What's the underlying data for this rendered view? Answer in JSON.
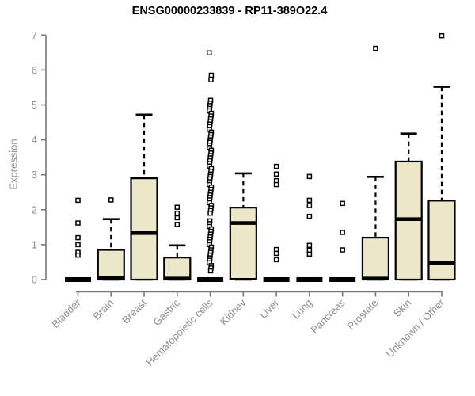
{
  "title": "ENSG00000233839 - RP11-389O22.4",
  "chart_data": {
    "type": "boxplot",
    "title": "ENSG00000233839 - RP11-389O22.4",
    "xlabel": "",
    "ylabel": "Expression",
    "ylim": [
      0,
      7
    ],
    "yticks": [
      0,
      1,
      2,
      3,
      4,
      5,
      6,
      7
    ],
    "grid": false,
    "legend": "none",
    "colors": {
      "box_fill": "#EDE7C9",
      "box_stroke": "#000000",
      "median": "#000000",
      "axis": "#787878",
      "tick_text": "#8f8f8f",
      "title_text": "#000000",
      "background": "#ffffff"
    },
    "categories": [
      "Bladder",
      "Brain",
      "Breast",
      "Gastric",
      "Hematopoietic cells",
      "Kidney",
      "Liver",
      "Lung",
      "Pancreas",
      "Prostate",
      "Skin",
      "Unknown / Other"
    ],
    "boxes": [
      {
        "label": "Bladder",
        "q1": 0,
        "median": 0,
        "q3": 0,
        "whisker_low": 0,
        "whisker_high": 0,
        "outliers": [
          2.27,
          1.62,
          1.2,
          1.0,
          0.78,
          0.7
        ]
      },
      {
        "label": "Brain",
        "q1": 0,
        "median": 0.04,
        "q3": 0.85,
        "whisker_low": 0,
        "whisker_high": 1.73,
        "outliers": [
          2.28
        ]
      },
      {
        "label": "Breast",
        "q1": 0,
        "median": 1.33,
        "q3": 2.9,
        "whisker_low": 0,
        "whisker_high": 4.72,
        "outliers": []
      },
      {
        "label": "Gastric",
        "q1": 0,
        "median": 0.03,
        "q3": 0.63,
        "whisker_low": 0,
        "whisker_high": 0.98,
        "outliers": [
          2.07,
          1.9,
          1.77,
          1.58
        ]
      },
      {
        "label": "Hematopoietic cells",
        "q1": 0,
        "median": 0,
        "q3": 0,
        "whisker_low": 0,
        "whisker_high": 0,
        "outliers": [
          6.49,
          5.85,
          5.72,
          5.13,
          5.05,
          4.98,
          4.9,
          4.83,
          4.76,
          4.68,
          4.6,
          4.52,
          4.45,
          4.38,
          4.3,
          4.22,
          4.15,
          4.08,
          4.0,
          3.93,
          3.85,
          3.78,
          3.7,
          3.62,
          3.55,
          3.48,
          3.4,
          3.32,
          3.25,
          3.18,
          3.1,
          3.02,
          2.95,
          2.88,
          2.8,
          2.72,
          2.65,
          2.58,
          2.5,
          2.42,
          2.35,
          2.28,
          2.2,
          2.12,
          2.05,
          1.98,
          1.9,
          1.68,
          1.6,
          1.52,
          1.45,
          1.38,
          1.3,
          1.22,
          1.15,
          1.08,
          1.0,
          0.93,
          0.85,
          0.78,
          0.7,
          0.62,
          0.55,
          0.48,
          0.4,
          0.33,
          0.25
        ]
      },
      {
        "label": "Kidney",
        "q1": 0.02,
        "median": 1.62,
        "q3": 2.06,
        "whisker_low": 0,
        "whisker_high": 3.04,
        "outliers": []
      },
      {
        "label": "Liver",
        "q1": 0,
        "median": 0,
        "q3": 0,
        "whisker_low": 0,
        "whisker_high": 0,
        "outliers": [
          3.24,
          3.02,
          2.83,
          2.72,
          0.86,
          0.75,
          0.57
        ]
      },
      {
        "label": "Lung",
        "q1": 0,
        "median": 0,
        "q3": 0,
        "whisker_low": 0,
        "whisker_high": 0,
        "outliers": [
          2.95,
          2.27,
          2.12,
          1.81,
          0.98,
          0.84,
          0.73
        ]
      },
      {
        "label": "Pancreas",
        "q1": 0,
        "median": 0,
        "q3": 0,
        "whisker_low": 0,
        "whisker_high": 0,
        "outliers": [
          2.18,
          1.35,
          0.85
        ]
      },
      {
        "label": "Prostate",
        "q1": 0,
        "median": 0.03,
        "q3": 1.2,
        "whisker_low": 0,
        "whisker_high": 2.94,
        "outliers": [
          6.62
        ]
      },
      {
        "label": "Skin",
        "q1": 0,
        "median": 1.73,
        "q3": 3.38,
        "whisker_low": 0,
        "whisker_high": 4.18,
        "outliers": []
      },
      {
        "label": "Unknown / Other",
        "q1": 0,
        "median": 0.48,
        "q3": 2.26,
        "whisker_low": 0,
        "whisker_high": 5.52,
        "outliers": [
          6.98
        ]
      }
    ]
  }
}
